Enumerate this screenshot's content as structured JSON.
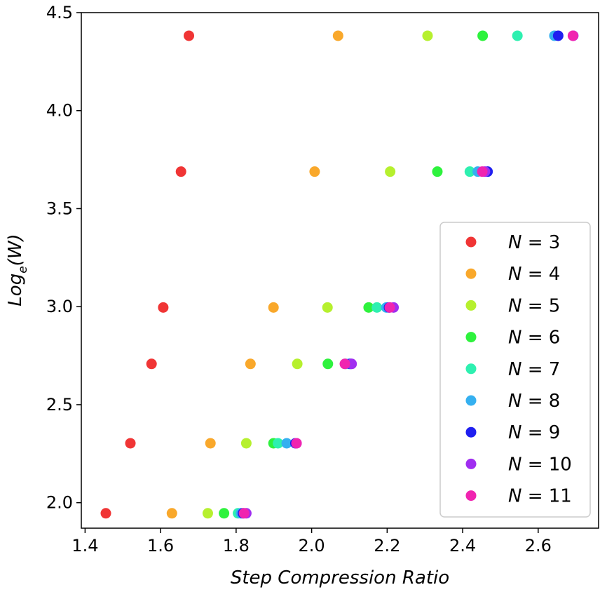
{
  "chart_data": {
    "type": "scatter",
    "xlabel": "Step Compression Ratio",
    "ylabel_base": "Log",
    "ylabel_sub": "e",
    "ylabel_arg": "(W)",
    "xlim": [
      1.39,
      2.76
    ],
    "ylim": [
      1.87,
      4.5
    ],
    "xticks": [
      1.4,
      1.6,
      1.8,
      2.0,
      2.2,
      2.4,
      2.6
    ],
    "xtick_labels": [
      "1.4",
      "1.6",
      "1.8",
      "2.0",
      "2.2",
      "2.4",
      "2.6"
    ],
    "yticks": [
      2.0,
      2.5,
      3.0,
      3.5,
      4.0,
      4.5
    ],
    "ytick_labels": [
      "2.0",
      "2.5",
      "3.0",
      "3.5",
      "4.0",
      "4.5"
    ],
    "grid": false,
    "legend_position": "right",
    "y_levels": [
      1.946,
      2.303,
      2.708,
      2.996,
      3.689,
      4.382
    ],
    "series": [
      {
        "name": "N = 3",
        "n": "3",
        "color": "#f03535",
        "x": [
          1.455,
          1.52,
          1.576,
          1.607,
          1.654,
          1.675
        ]
      },
      {
        "name": "N = 4",
        "n": "4",
        "color": "#f9a82b",
        "x": [
          1.63,
          1.732,
          1.838,
          1.899,
          2.008,
          2.07
        ]
      },
      {
        "name": "N = 5",
        "n": "5",
        "color": "#b6f02e",
        "x": [
          1.725,
          1.827,
          1.962,
          2.042,
          2.208,
          2.307
        ]
      },
      {
        "name": "N = 6",
        "n": "6",
        "color": "#2ef23d",
        "x": [
          1.768,
          1.899,
          2.043,
          2.151,
          2.333,
          2.453
        ]
      },
      {
        "name": "N = 7",
        "n": "7",
        "color": "#2ef0b0",
        "x": [
          1.805,
          1.911,
          2.09,
          2.173,
          2.419,
          2.545
        ]
      },
      {
        "name": "N = 8",
        "n": "8",
        "color": "#35b0f0",
        "x": [
          1.813,
          1.934,
          2.099,
          2.198,
          2.44,
          2.643
        ]
      },
      {
        "name": "N = 9",
        "n": "9",
        "color": "#1f1ff0",
        "x": [
          1.818,
          1.957,
          2.103,
          2.205,
          2.466,
          2.653
        ]
      },
      {
        "name": "N = 10",
        "n": "10",
        "color": "#a02ef0",
        "x": [
          1.827,
          1.96,
          2.106,
          2.217,
          2.459,
          2.693
        ]
      },
      {
        "name": "N = 11",
        "n": "11",
        "color": "#f024b0",
        "x": [
          1.821,
          1.96,
          2.088,
          2.207,
          2.452,
          2.692
        ]
      }
    ]
  }
}
